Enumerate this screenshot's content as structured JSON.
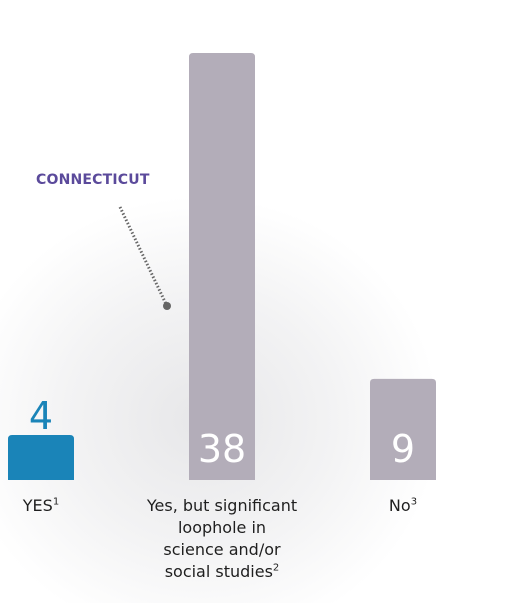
{
  "chart_data": {
    "type": "bar",
    "categories": [
      {
        "label": "YES",
        "sup": "1"
      },
      {
        "label": "Yes, but significant loophole in science and/or social studies",
        "sup": "2"
      },
      {
        "label": "No",
        "sup": "3"
      }
    ],
    "values": [
      4,
      38,
      9
    ],
    "ylim": [
      0,
      42
    ],
    "bar_colors": [
      "#1a84b8",
      "#b3adb9",
      "#b3adb9"
    ],
    "value_label_colors": [
      "#1a84b8",
      "#ffffff",
      "#ffffff"
    ],
    "callout": {
      "text": "CONNECTICUT",
      "category_index": 1,
      "color": "#5b4a9b"
    },
    "grid": false,
    "legend": "none"
  }
}
